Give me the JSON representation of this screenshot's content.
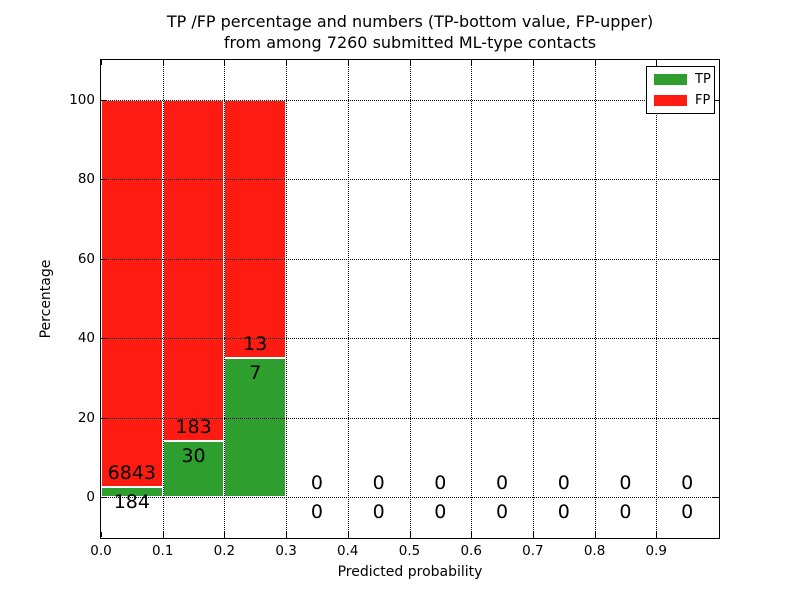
{
  "title": {
    "line1": "TP /FP percentage and numbers (TP-bottom value, FP-upper)",
    "line2": "from among 7260 submitted ML-type contacts"
  },
  "colors": {
    "tp": "#2e9e2e",
    "fp": "#fe1b12",
    "grid": "#000000",
    "text": "#000000",
    "background": "#ffffff"
  },
  "chart_data": {
    "type": "bar",
    "stacked": true,
    "title": "TP /FP percentage and numbers (TP-bottom value, FP-upper) from among 7260 submitted ML-type contacts",
    "xlabel": "Predicted probability",
    "ylabel": "Percentage",
    "total_contacts": 7260,
    "xlim": [
      0.0,
      1.0
    ],
    "ylim": [
      -10,
      110
    ],
    "grid": "dotted",
    "xticks": [
      {
        "v": 0.0,
        "label": "0.0"
      },
      {
        "v": 0.1,
        "label": "0.1"
      },
      {
        "v": 0.2,
        "label": "0.2"
      },
      {
        "v": 0.3,
        "label": "0.3"
      },
      {
        "v": 0.4,
        "label": "0.4"
      },
      {
        "v": 0.5,
        "label": "0.5"
      },
      {
        "v": 0.6,
        "label": "0.6"
      },
      {
        "v": 0.7,
        "label": "0.7"
      },
      {
        "v": 0.8,
        "label": "0.8"
      },
      {
        "v": 0.9,
        "label": "0.9"
      }
    ],
    "yticks": [
      0,
      20,
      40,
      60,
      80,
      100
    ],
    "legend": {
      "position": "upper right",
      "entries": [
        {
          "label": "TP",
          "color": "#2e9e2e"
        },
        {
          "label": "FP",
          "color": "#fe1b12"
        }
      ]
    },
    "bins": [
      {
        "x0": 0.0,
        "x1": 0.1,
        "tp": 184,
        "fp": 6843,
        "tp_pct": 2.62,
        "fp_pct": 97.38
      },
      {
        "x0": 0.1,
        "x1": 0.2,
        "tp": 30,
        "fp": 183,
        "tp_pct": 14.08,
        "fp_pct": 85.92
      },
      {
        "x0": 0.2,
        "x1": 0.3,
        "tp": 7,
        "fp": 13,
        "tp_pct": 35.0,
        "fp_pct": 65.0
      },
      {
        "x0": 0.3,
        "x1": 0.4,
        "tp": 0,
        "fp": 0,
        "tp_pct": 0,
        "fp_pct": 0
      },
      {
        "x0": 0.4,
        "x1": 0.5,
        "tp": 0,
        "fp": 0,
        "tp_pct": 0,
        "fp_pct": 0
      },
      {
        "x0": 0.5,
        "x1": 0.6,
        "tp": 0,
        "fp": 0,
        "tp_pct": 0,
        "fp_pct": 0
      },
      {
        "x0": 0.6,
        "x1": 0.7,
        "tp": 0,
        "fp": 0,
        "tp_pct": 0,
        "fp_pct": 0
      },
      {
        "x0": 0.7,
        "x1": 0.8,
        "tp": 0,
        "fp": 0,
        "tp_pct": 0,
        "fp_pct": 0
      },
      {
        "x0": 0.8,
        "x1": 0.9,
        "tp": 0,
        "fp": 0,
        "tp_pct": 0,
        "fp_pct": 0
      },
      {
        "x0": 0.9,
        "x1": 1.0,
        "tp": 0,
        "fp": 0,
        "tp_pct": 0,
        "fp_pct": 0
      }
    ]
  }
}
